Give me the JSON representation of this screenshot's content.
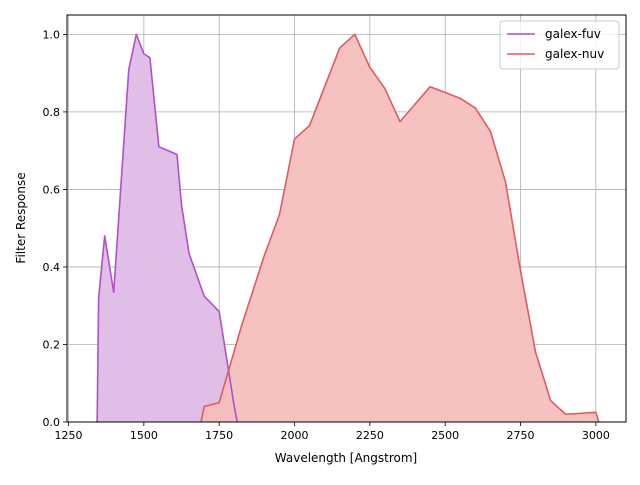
{
  "chart_data": {
    "type": "area",
    "xlabel": "Wavelength [Angstrom]",
    "ylabel": "Filter Response",
    "xlim": [
      1245,
      3100
    ],
    "ylim": [
      0,
      1.05
    ],
    "xticks": [
      1250,
      1500,
      1750,
      2000,
      2250,
      2500,
      2750,
      3000
    ],
    "xtick_labels": [
      "1250",
      "1500",
      "1750",
      "2000",
      "2250",
      "2500",
      "2750",
      "3000"
    ],
    "yticks": [
      0.0,
      0.2,
      0.4,
      0.6,
      0.8,
      1.0
    ],
    "ytick_labels": [
      "0.0",
      "0.2",
      "0.4",
      "0.6",
      "0.8",
      "1.0"
    ],
    "grid": true,
    "legend_position": "top-right",
    "series": [
      {
        "name": "galex-fuv",
        "color": "#ae52c7",
        "fill_color": "#dfbbe6",
        "x": [
          1340,
          1345,
          1350,
          1370,
          1400,
          1450,
          1475,
          1500,
          1520,
          1550,
          1610,
          1625,
          1650,
          1700,
          1750,
          1800,
          1810
        ],
        "y": [
          0.0,
          0.0,
          0.32,
          0.48,
          0.335,
          0.91,
          1.0,
          0.95,
          0.94,
          0.71,
          0.69,
          0.56,
          0.435,
          0.325,
          0.285,
          0.04,
          0.0
        ]
      },
      {
        "name": "galex-nuv",
        "color": "#e05c5c",
        "fill_color": "#f4bebe",
        "x": [
          1690,
          1700,
          1750,
          1825,
          1900,
          1950,
          2000,
          2050,
          2100,
          2150,
          2200,
          2250,
          2300,
          2350,
          2400,
          2450,
          2500,
          2550,
          2600,
          2650,
          2700,
          2750,
          2800,
          2850,
          2900,
          3000,
          3010
        ],
        "y": [
          0.0,
          0.04,
          0.05,
          0.25,
          0.43,
          0.535,
          0.73,
          0.765,
          0.865,
          0.965,
          1.0,
          0.915,
          0.86,
          0.775,
          0.82,
          0.865,
          0.85,
          0.835,
          0.81,
          0.75,
          0.62,
          0.39,
          0.18,
          0.055,
          0.02,
          0.025,
          0.0
        ]
      }
    ]
  }
}
